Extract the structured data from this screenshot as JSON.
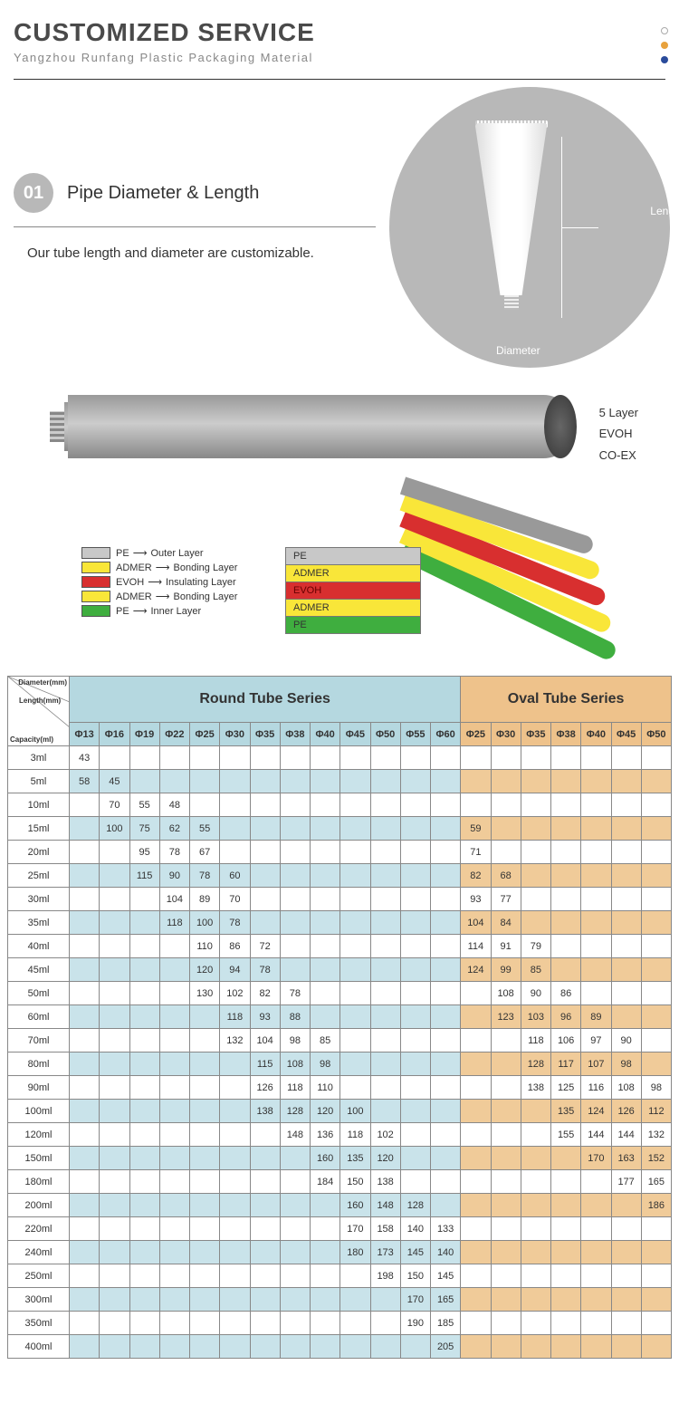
{
  "header": {
    "title": "CUSTOMIZED SERVICE",
    "subtitle": "Yangzhou Runfang Plastic Packaging Material"
  },
  "section1": {
    "badge": "01",
    "title": "Pipe Diameter & Length",
    "desc": "Our tube length and diameter are customizable.",
    "length_label": "Length",
    "diameter_label": "Diameter"
  },
  "layers": {
    "side_labels": [
      "5 Layer",
      "EVOH",
      "CO-EX"
    ],
    "legend": [
      {
        "color": "#c8c8c8",
        "mat": "PE",
        "role": "Outer Layer"
      },
      {
        "color": "#f9e639",
        "mat": "ADMER",
        "role": "Bonding Layer"
      },
      {
        "color": "#d82f2f",
        "mat": "EVOH",
        "role": "Insulating Layer"
      },
      {
        "color": "#f9e639",
        "mat": "ADMER",
        "role": "Bonding Layer"
      },
      {
        "color": "#3fae3f",
        "mat": "PE",
        "role": "Inner Layer"
      }
    ],
    "box_labels": [
      "PE",
      "ADMER",
      "EVOH",
      "ADMER",
      "PE"
    ],
    "box_colors": [
      "ll-grey",
      "ll-yellow",
      "ll-red",
      "ll-yellow",
      "ll-green"
    ]
  },
  "table": {
    "corner": {
      "c1": "Diameter(mm)",
      "c2": "Length(mm)",
      "c3": "Capacity(ml)"
    },
    "round_header": "Round Tube Series",
    "oval_header": "Oval Tube Series",
    "round_cols": [
      "Φ13",
      "Φ16",
      "Φ19",
      "Φ22",
      "Φ25",
      "Φ30",
      "Φ35",
      "Φ38",
      "Φ40",
      "Φ45",
      "Φ50",
      "Φ55",
      "Φ60"
    ],
    "oval_cols": [
      "Φ25",
      "Φ30",
      "Φ35",
      "Φ38",
      "Φ40",
      "Φ45",
      "Φ50"
    ],
    "rows": [
      {
        "cap": "3ml",
        "r": [
          "43",
          "",
          "",
          "",
          "",
          "",
          "",
          "",
          "",
          "",
          "",
          "",
          ""
        ],
        "o": [
          "",
          "",
          "",
          "",
          "",
          "",
          ""
        ]
      },
      {
        "cap": "5ml",
        "r": [
          "58",
          "45",
          "",
          "",
          "",
          "",
          "",
          "",
          "",
          "",
          "",
          "",
          ""
        ],
        "o": [
          "",
          "",
          "",
          "",
          "",
          "",
          ""
        ]
      },
      {
        "cap": "10ml",
        "r": [
          "",
          "70",
          "55",
          "48",
          "",
          "",
          "",
          "",
          "",
          "",
          "",
          "",
          ""
        ],
        "o": [
          "",
          "",
          "",
          "",
          "",
          "",
          ""
        ]
      },
      {
        "cap": "15ml",
        "r": [
          "",
          "100",
          "75",
          "62",
          "55",
          "",
          "",
          "",
          "",
          "",
          "",
          "",
          ""
        ],
        "o": [
          "59",
          "",
          "",
          "",
          "",
          "",
          ""
        ]
      },
      {
        "cap": "20ml",
        "r": [
          "",
          "",
          "95",
          "78",
          "67",
          "",
          "",
          "",
          "",
          "",
          "",
          "",
          ""
        ],
        "o": [
          "71",
          "",
          "",
          "",
          "",
          "",
          ""
        ]
      },
      {
        "cap": "25ml",
        "r": [
          "",
          "",
          "115",
          "90",
          "78",
          "60",
          "",
          "",
          "",
          "",
          "",
          "",
          ""
        ],
        "o": [
          "82",
          "68",
          "",
          "",
          "",
          "",
          ""
        ]
      },
      {
        "cap": "30ml",
        "r": [
          "",
          "",
          "",
          "104",
          "89",
          "70",
          "",
          "",
          "",
          "",
          "",
          "",
          ""
        ],
        "o": [
          "93",
          "77",
          "",
          "",
          "",
          "",
          ""
        ]
      },
      {
        "cap": "35ml",
        "r": [
          "",
          "",
          "",
          "118",
          "100",
          "78",
          "",
          "",
          "",
          "",
          "",
          "",
          ""
        ],
        "o": [
          "104",
          "84",
          "",
          "",
          "",
          "",
          ""
        ]
      },
      {
        "cap": "40ml",
        "r": [
          "",
          "",
          "",
          "",
          "110",
          "86",
          "72",
          "",
          "",
          "",
          "",
          "",
          ""
        ],
        "o": [
          "114",
          "91",
          "79",
          "",
          "",
          "",
          ""
        ]
      },
      {
        "cap": "45ml",
        "r": [
          "",
          "",
          "",
          "",
          "120",
          "94",
          "78",
          "",
          "",
          "",
          "",
          "",
          ""
        ],
        "o": [
          "124",
          "99",
          "85",
          "",
          "",
          "",
          ""
        ]
      },
      {
        "cap": "50ml",
        "r": [
          "",
          "",
          "",
          "",
          "130",
          "102",
          "82",
          "78",
          "",
          "",
          "",
          "",
          ""
        ],
        "o": [
          "",
          "108",
          "90",
          "86",
          "",
          "",
          ""
        ]
      },
      {
        "cap": "60ml",
        "r": [
          "",
          "",
          "",
          "",
          "",
          "118",
          "93",
          "88",
          "",
          "",
          "",
          "",
          ""
        ],
        "o": [
          "",
          "123",
          "103",
          "96",
          "89",
          "",
          ""
        ]
      },
      {
        "cap": "70ml",
        "r": [
          "",
          "",
          "",
          "",
          "",
          "132",
          "104",
          "98",
          "85",
          "",
          "",
          "",
          ""
        ],
        "o": [
          "",
          "",
          "118",
          "106",
          "97",
          "90",
          ""
        ]
      },
      {
        "cap": "80ml",
        "r": [
          "",
          "",
          "",
          "",
          "",
          "",
          "115",
          "108",
          "98",
          "",
          "",
          "",
          ""
        ],
        "o": [
          "",
          "",
          "128",
          "117",
          "107",
          "98",
          ""
        ]
      },
      {
        "cap": "90ml",
        "r": [
          "",
          "",
          "",
          "",
          "",
          "",
          "126",
          "118",
          "110",
          "",
          "",
          "",
          ""
        ],
        "o": [
          "",
          "",
          "138",
          "125",
          "116",
          "108",
          "98"
        ]
      },
      {
        "cap": "100ml",
        "r": [
          "",
          "",
          "",
          "",
          "",
          "",
          "138",
          "128",
          "120",
          "100",
          "",
          "",
          ""
        ],
        "o": [
          "",
          "",
          "",
          "135",
          "124",
          "126",
          "112"
        ]
      },
      {
        "cap": "120ml",
        "r": [
          "",
          "",
          "",
          "",
          "",
          "",
          "",
          "148",
          "136",
          "118",
          "102",
          "",
          ""
        ],
        "o": [
          "",
          "",
          "",
          "155",
          "144",
          "144",
          "132"
        ]
      },
      {
        "cap": "150ml",
        "r": [
          "",
          "",
          "",
          "",
          "",
          "",
          "",
          "",
          "160",
          "135",
          "120",
          "",
          ""
        ],
        "o": [
          "",
          "",
          "",
          "",
          "170",
          "163",
          "152"
        ]
      },
      {
        "cap": "180ml",
        "r": [
          "",
          "",
          "",
          "",
          "",
          "",
          "",
          "",
          "184",
          "150",
          "138",
          "",
          ""
        ],
        "o": [
          "",
          "",
          "",
          "",
          "",
          "177",
          "165"
        ]
      },
      {
        "cap": "200ml",
        "r": [
          "",
          "",
          "",
          "",
          "",
          "",
          "",
          "",
          "",
          "160",
          "148",
          "128",
          ""
        ],
        "o": [
          "",
          "",
          "",
          "",
          "",
          "",
          "186"
        ]
      },
      {
        "cap": "220ml",
        "r": [
          "",
          "",
          "",
          "",
          "",
          "",
          "",
          "",
          "",
          "170",
          "158",
          "140",
          "133"
        ],
        "o": [
          "",
          "",
          "",
          "",
          "",
          "",
          ""
        ]
      },
      {
        "cap": "240ml",
        "r": [
          "",
          "",
          "",
          "",
          "",
          "",
          "",
          "",
          "",
          "180",
          "173",
          "145",
          "140"
        ],
        "o": [
          "",
          "",
          "",
          "",
          "",
          "",
          ""
        ]
      },
      {
        "cap": "250ml",
        "r": [
          "",
          "",
          "",
          "",
          "",
          "",
          "",
          "",
          "",
          "",
          "198",
          "150",
          "145"
        ],
        "o": [
          "",
          "",
          "",
          "",
          "",
          "",
          ""
        ]
      },
      {
        "cap": "300ml",
        "r": [
          "",
          "",
          "",
          "",
          "",
          "",
          "",
          "",
          "",
          "",
          "",
          "170",
          "165"
        ],
        "o": [
          "",
          "",
          "",
          "",
          "",
          "",
          ""
        ]
      },
      {
        "cap": "350ml",
        "r": [
          "",
          "",
          "",
          "",
          "",
          "",
          "",
          "",
          "",
          "",
          "",
          "190",
          "185"
        ],
        "o": [
          "",
          "",
          "",
          "",
          "",
          "",
          ""
        ]
      },
      {
        "cap": "400ml",
        "r": [
          "",
          "",
          "",
          "",
          "",
          "",
          "",
          "",
          "",
          "",
          "",
          "",
          "205"
        ],
        "o": [
          "",
          "",
          "",
          "",
          "",
          "",
          ""
        ]
      }
    ]
  }
}
